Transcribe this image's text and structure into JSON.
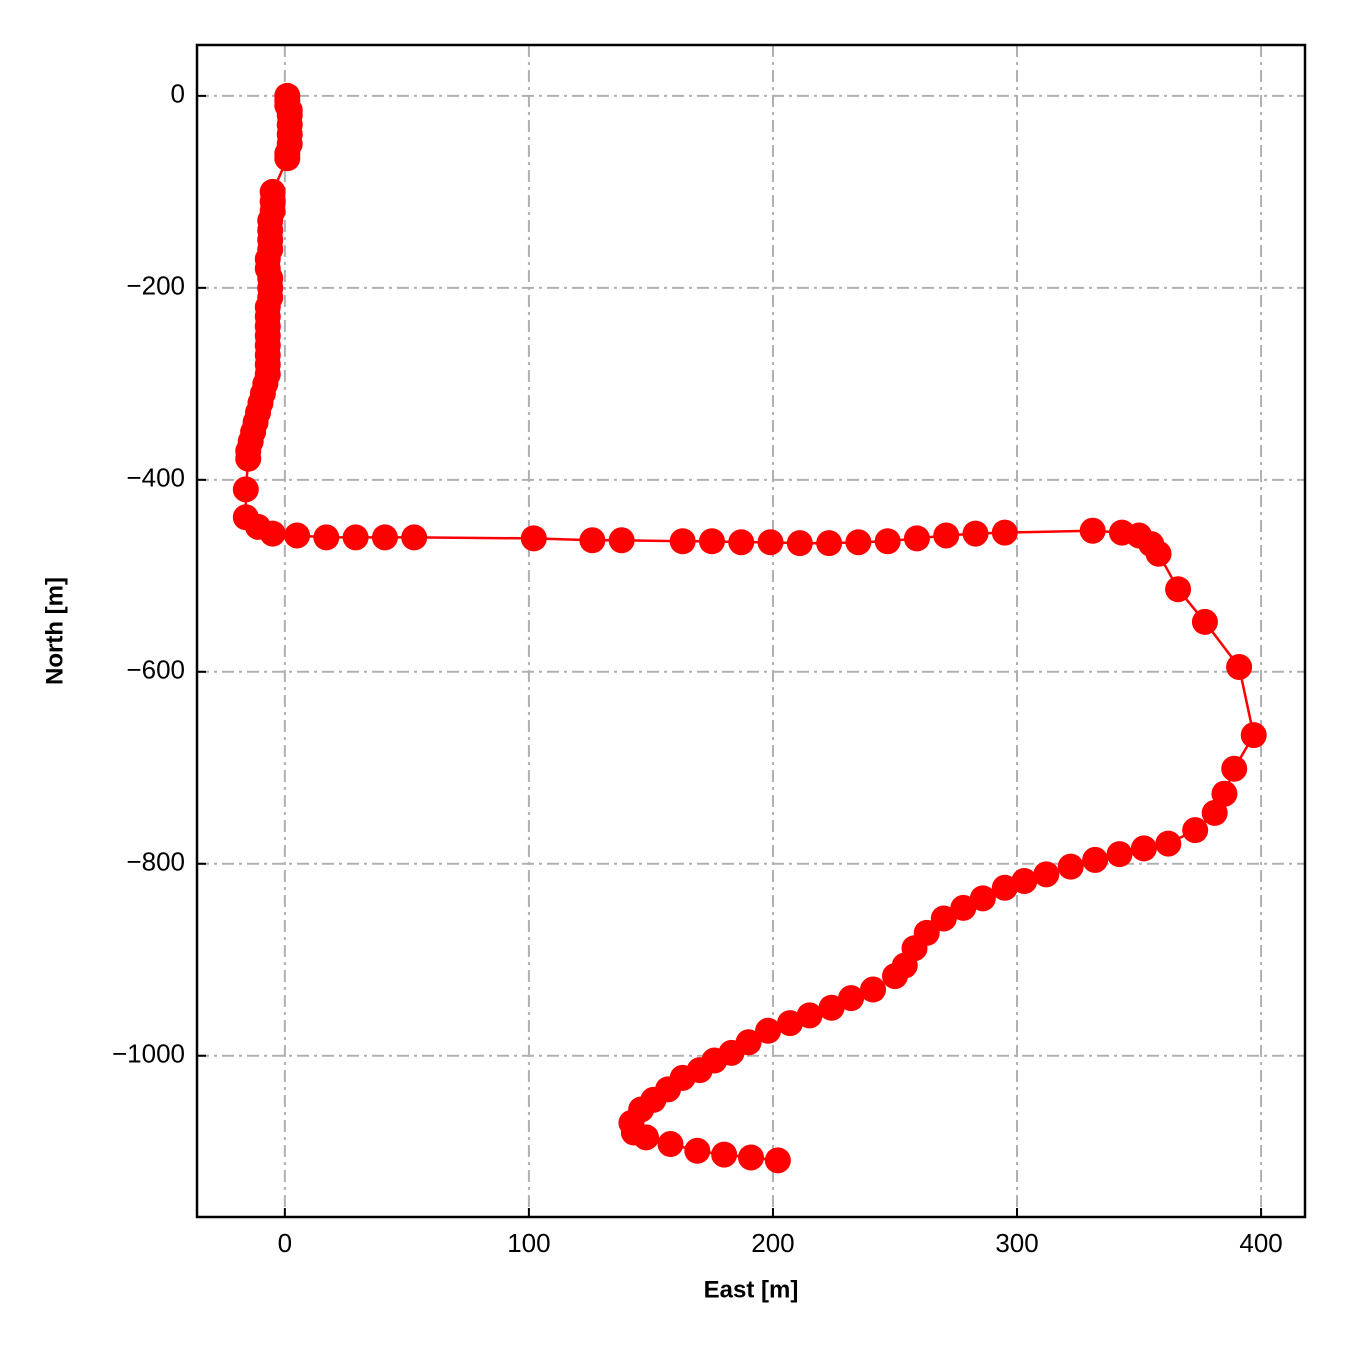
{
  "chart_data": {
    "type": "line",
    "x_label": "East [m]",
    "y_label": "North [m]",
    "color": "#ff0000",
    "grid": true,
    "xlim": [
      -36,
      418
    ],
    "ylim": [
      -1168,
      53
    ],
    "xticks": [
      0,
      100,
      200,
      300,
      400
    ],
    "yticks": [
      {
        "value": 0,
        "label": "0"
      },
      {
        "value": -200,
        "label": "−200"
      },
      {
        "value": -400,
        "label": "−400"
      },
      {
        "value": -600,
        "label": "−600"
      },
      {
        "value": -800,
        "label": "−800"
      },
      {
        "value": -1000,
        "label": "−1000"
      }
    ],
    "x": [
      1,
      1,
      1,
      2,
      2,
      2,
      2,
      2,
      1,
      1,
      -5,
      -5,
      -5,
      -6,
      -6,
      -6,
      -6,
      -7,
      -7,
      -6,
      -6,
      -6,
      -7,
      -7,
      -7,
      -7,
      -7,
      -7,
      -7,
      -7,
      -8,
      -9,
      -10,
      -11,
      -12,
      -13,
      -14,
      -15,
      -15,
      -16,
      -16,
      -11,
      -5,
      5,
      17,
      29,
      41,
      53,
      102,
      126,
      138,
      163,
      175,
      187,
      199,
      211,
      223,
      235,
      247,
      259,
      271,
      283,
      295,
      331,
      343,
      350,
      355,
      358,
      366,
      377,
      391,
      397,
      389,
      385,
      381,
      373,
      362,
      352,
      342,
      332,
      322,
      312,
      303,
      295,
      286,
      278,
      270,
      263,
      258,
      254,
      250,
      241,
      232,
      224,
      215,
      207,
      198,
      190,
      183,
      176,
      170,
      163,
      157,
      151,
      146,
      142,
      143,
      148,
      158,
      169,
      180,
      191,
      202
    ],
    "y": [
      0,
      -5,
      -10,
      -15,
      -20,
      -30,
      -40,
      -50,
      -60,
      -65,
      -100,
      -110,
      -120,
      -130,
      -140,
      -150,
      -160,
      -170,
      -180,
      -190,
      -200,
      -210,
      -220,
      -230,
      -240,
      -250,
      -260,
      -270,
      -280,
      -290,
      -300,
      -310,
      -320,
      -330,
      -340,
      -350,
      -360,
      -370,
      -378,
      -410,
      -439,
      -449,
      -456,
      -458,
      -460,
      -460,
      -460,
      -460,
      -461,
      -463,
      -463,
      -464,
      -464,
      -465,
      -465,
      -466,
      -466,
      -465,
      -464,
      -461,
      -458,
      -456,
      -455,
      -453,
      -455,
      -458,
      -467,
      -477,
      -514,
      -548,
      -595,
      -666,
      -701,
      -727,
      -747,
      -765,
      -779,
      -784,
      -790,
      -796,
      -803,
      -811,
      -818,
      -825,
      -836,
      -846,
      -857,
      -872,
      -888,
      -906,
      -917,
      -931,
      -940,
      -950,
      -958,
      -966,
      -974,
      -986,
      -997,
      -1005,
      -1015,
      -1023,
      -1035,
      -1046,
      -1056,
      -1070,
      -1080,
      -1085,
      -1092,
      -1099,
      -1103,
      -1106,
      -1109
    ]
  }
}
